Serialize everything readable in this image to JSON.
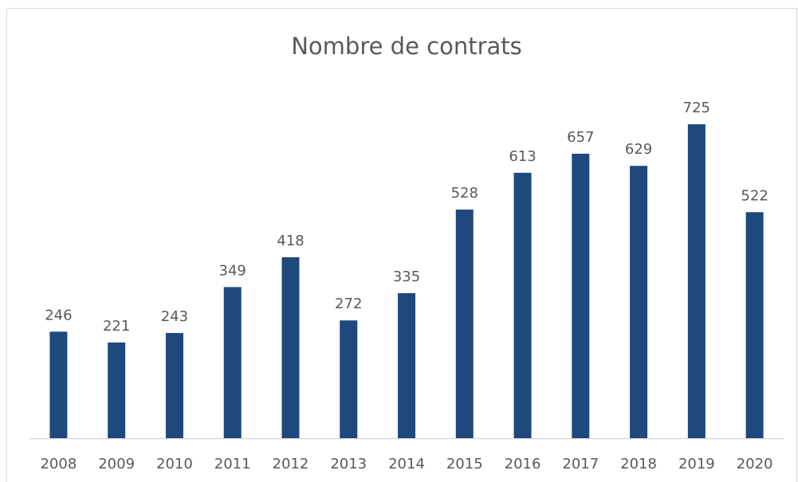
{
  "chart_data": {
    "type": "bar",
    "title": "Nombre de contrats",
    "categories": [
      "2008",
      "2009",
      "2010",
      "2011",
      "2012",
      "2013",
      "2014",
      "2015",
      "2016",
      "2017",
      "2018",
      "2019",
      "2020"
    ],
    "values": [
      246,
      221,
      243,
      349,
      418,
      272,
      335,
      528,
      613,
      657,
      629,
      725,
      522
    ],
    "color": "#1f497d"
  }
}
